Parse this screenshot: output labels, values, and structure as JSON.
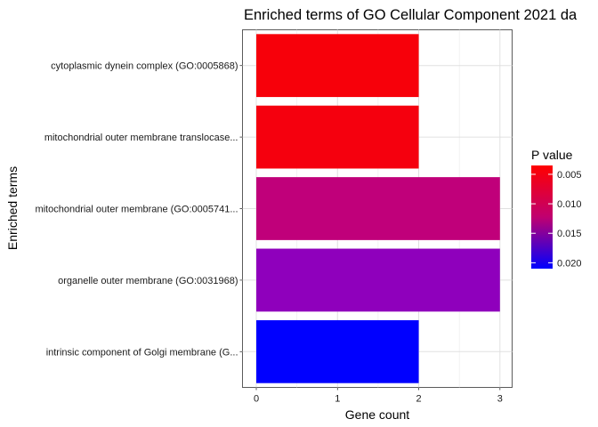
{
  "chart_data": {
    "type": "bar",
    "orientation": "horizontal",
    "title": "Enriched terms of GO Cellular Component 2021 da",
    "xlabel": "Gene count",
    "ylabel": "Enriched terms",
    "categories": [
      "cytoplasmic dynein complex (GO:0005868)",
      "mitochondrial outer membrane translocase...",
      "mitochondrial outer membrane (GO:0005741...",
      "organelle outer membrane (GO:0031968)",
      "intrinsic component of Golgi membrane (G..."
    ],
    "values": [
      2,
      2,
      3,
      3,
      2
    ],
    "p_values": [
      0.0035,
      0.0035,
      0.011,
      0.015,
      0.021
    ],
    "bar_colors": [
      "#f7000a",
      "#f5000e",
      "#c0007a",
      "#8f00bc",
      "#0000ff"
    ],
    "xlim": [
      -0.17,
      3.15
    ],
    "xticks": [
      "0",
      "1",
      "2",
      "3"
    ],
    "grid": true,
    "legend": {
      "title": "P value",
      "placement": "right",
      "ticks": [
        "0.005",
        "0.010",
        "0.015",
        "0.020"
      ],
      "tick_values": [
        0.005,
        0.01,
        0.015,
        0.02
      ],
      "range": [
        0.0035,
        0.021
      ],
      "color_low": "#ff0000",
      "color_high": "#0000ff"
    }
  }
}
